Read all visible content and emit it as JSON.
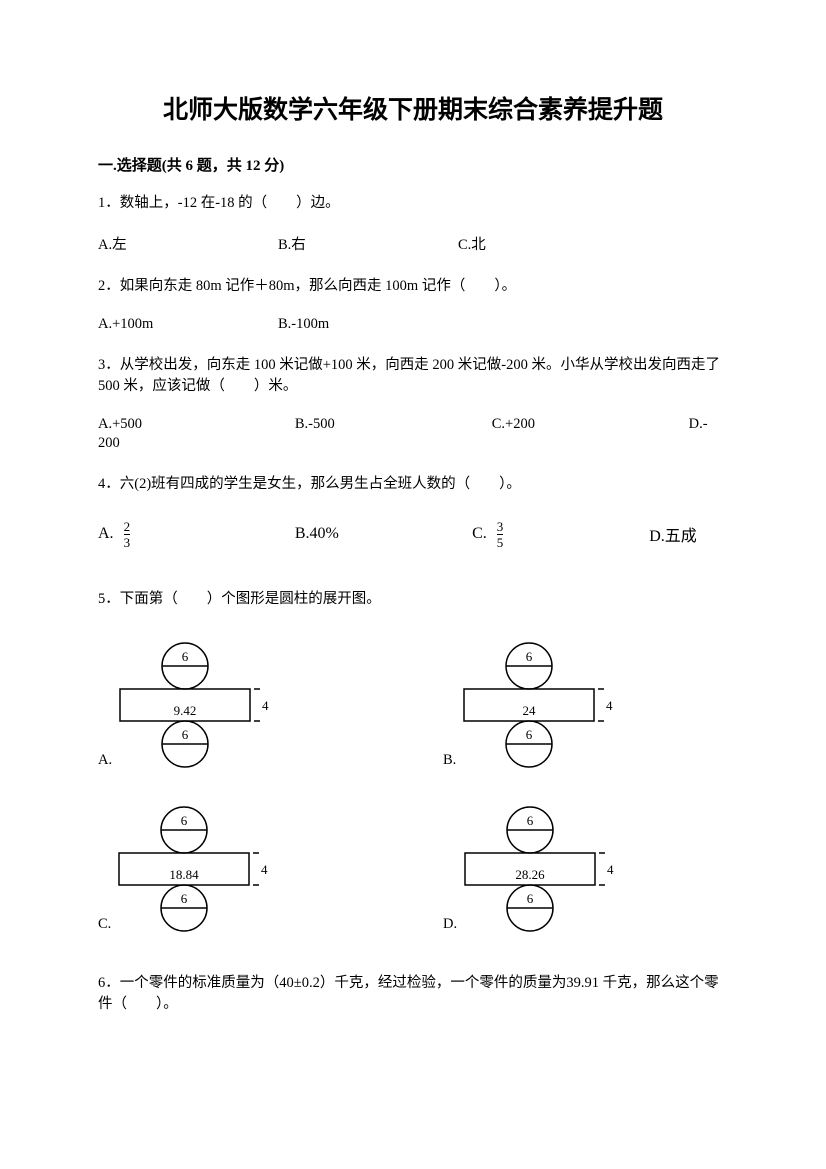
{
  "title": "北师大版数学六年级下册期末综合素养提升题",
  "section1_header": "一.选择题(共 6 题，共 12 分)",
  "q1": {
    "text": "1．数轴上，-12 在-18 的（　　）边。",
    "a": "A.左",
    "b": "B.右",
    "c": "C.北"
  },
  "q2": {
    "text": "2．如果向东走 80m 记作＋80m，那么向西走 100m 记作（　　）。",
    "a": "A.+100m",
    "b": "B.-100m"
  },
  "q3": {
    "text": "3．从学校出发，向东走 100 米记做+100 米，向西走 200 米记做-200 米。小华从学校出发向西走了 500 米，应该记做（　　）米。",
    "a": "A.+500",
    "b": "B.-500",
    "c": "C.+200",
    "d": "D.-",
    "extra": "200"
  },
  "q4": {
    "text": "4．六(2)班有四成的学生是女生，那么男生占全班人数的（　　）。",
    "a_prefix": "A.",
    "a_num": "2",
    "a_den": "3",
    "b": "B.40%",
    "c_prefix": "C.",
    "c_num": "3",
    "c_den": "5",
    "d": "D.五成"
  },
  "q5": {
    "text": "5．下面第（　　）个图形是圆柱的展开图。",
    "diagrams": [
      {
        "label": "A.",
        "rect_text": "9.42",
        "circle_text": "6",
        "side": "4"
      },
      {
        "label": "B.",
        "rect_text": "24",
        "circle_text": "6",
        "side": "4"
      },
      {
        "label": "C.",
        "rect_text": "18.84",
        "circle_text": "6",
        "side": "4"
      },
      {
        "label": "D.",
        "rect_text": "28.26",
        "circle_text": "6",
        "side": "4"
      }
    ]
  },
  "q6": {
    "text": "6．一个零件的标准质量为（40±0.2）千克，经过检验，一个零件的质量为39.91 千克，那么这个零件（　　）。"
  },
  "diagram_style": {
    "circle_diameter": 46,
    "rect_width": 130,
    "rect_height": 32,
    "stroke": "#000000",
    "stroke_width": 1.5,
    "font_size": 13
  }
}
